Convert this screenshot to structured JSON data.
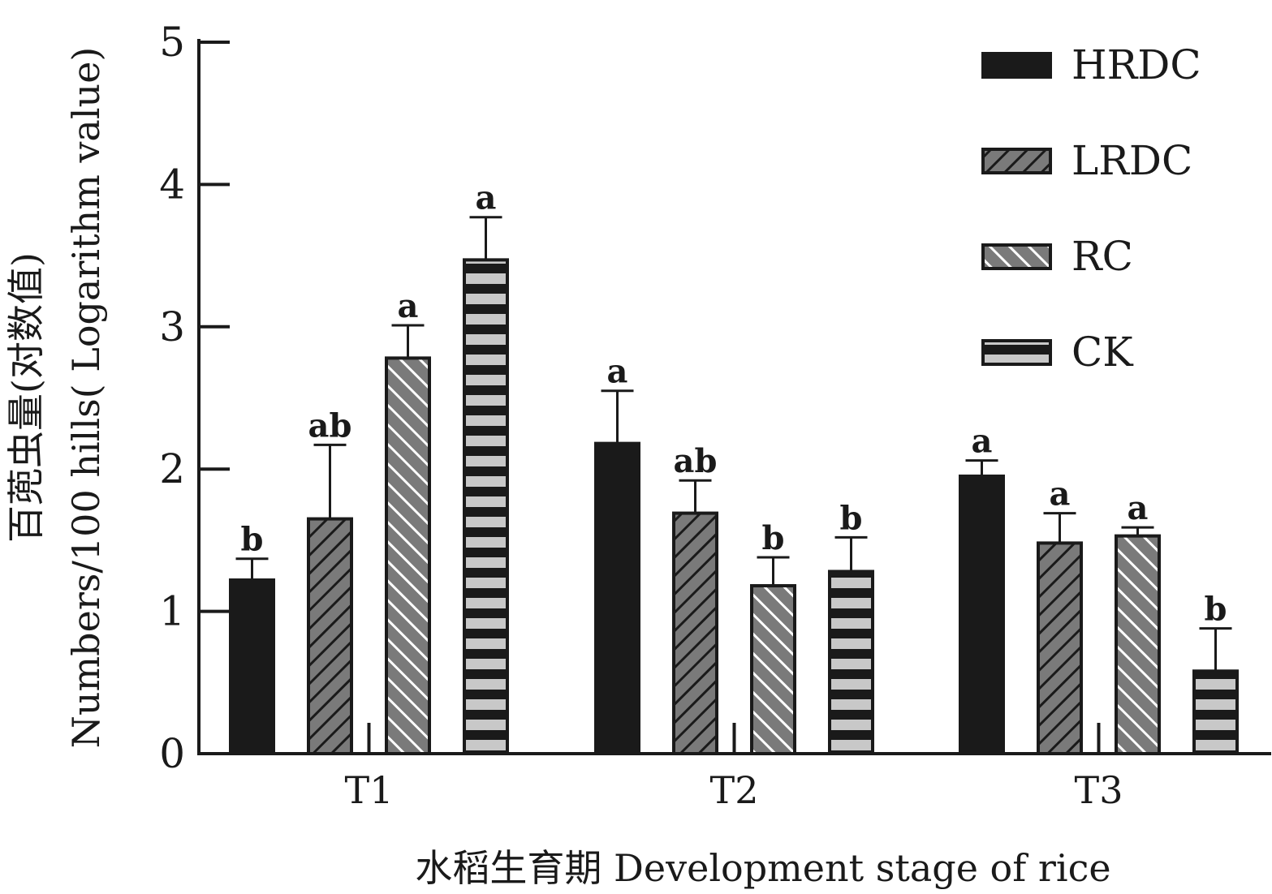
{
  "chart_data": {
    "type": "bar",
    "categories": [
      "T1",
      "T2",
      "T3"
    ],
    "series": [
      {
        "name": "HRDC",
        "values": [
          1.22,
          2.18,
          1.95
        ],
        "errors": [
          0.15,
          0.37,
          0.11
        ],
        "sig": [
          "b",
          "a",
          "a"
        ],
        "pattern": "solid"
      },
      {
        "name": "LRDC",
        "values": [
          1.65,
          1.69,
          1.48
        ],
        "errors": [
          0.52,
          0.23,
          0.21
        ],
        "sig": [
          "ab",
          "ab",
          "a"
        ],
        "pattern": "hatch-up"
      },
      {
        "name": "RC",
        "values": [
          2.78,
          1.18,
          1.53
        ],
        "errors": [
          0.23,
          0.2,
          0.06
        ],
        "sig": [
          "a",
          "b",
          "a"
        ],
        "pattern": "hatch-down"
      },
      {
        "name": "CK",
        "values": [
          3.47,
          1.28,
          0.58
        ],
        "errors": [
          0.3,
          0.24,
          0.3
        ],
        "sig": [
          "a",
          "b",
          "b"
        ],
        "pattern": "horizontal"
      }
    ],
    "ylim": [
      0,
      5
    ],
    "yticks": [
      "0",
      "1",
      "2",
      "3",
      "4",
      "5"
    ],
    "ylabel_line1": "百蔸虫量(对数值)",
    "ylabel_line2": "Numbers/100 hills( Logarithm value)",
    "xlabel": "水稻生育期 Development stage of rice",
    "legend_position": "top-right",
    "grid": false
  },
  "colors": {
    "HRDC": "#1a1a1a",
    "LRDC": "#7a7a7a",
    "RC": "#7a7a7a",
    "CK": "#c8c8c8",
    "ink": "#1a1a1a"
  }
}
